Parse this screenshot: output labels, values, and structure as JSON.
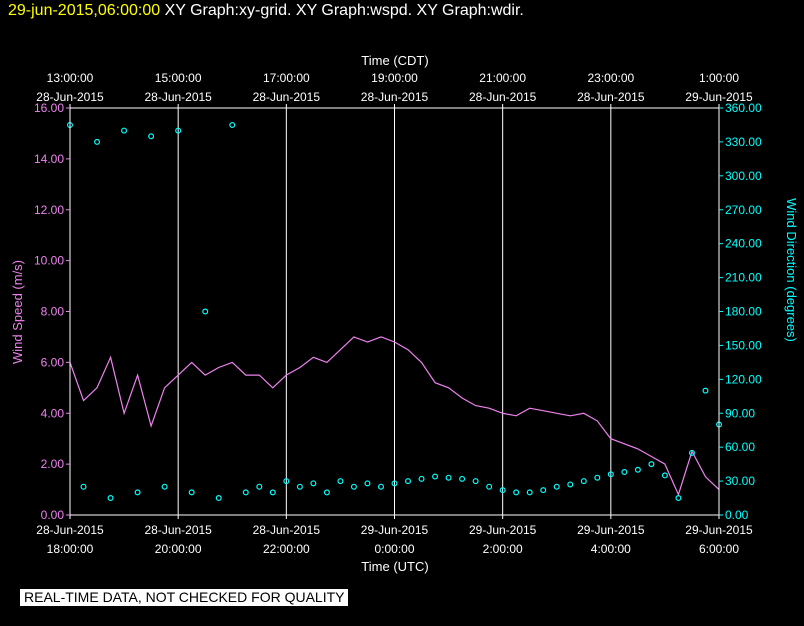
{
  "header": {
    "timestamp": "29-jun-2015,06:00:00",
    "graph_titles": "XY Graph:xy-grid.  XY Graph:wspd.  XY Graph:wdir."
  },
  "notice": "REAL-TIME DATA, NOT CHECKED FOR QUALITY",
  "colors": {
    "background": "#000000",
    "axes": "#ffffff",
    "wind_speed": "#ee82ee",
    "wind_direction": "#00ffff",
    "timestamp": "#ffff00"
  },
  "chart_data": {
    "type": "line",
    "top_axis": {
      "label": "Time (CDT)",
      "ticks": [
        {
          "hour": 0,
          "line1": "13:00:00",
          "line2": "28-Jun-2015"
        },
        {
          "hour": 2,
          "line1": "15:00:00",
          "line2": "28-Jun-2015"
        },
        {
          "hour": 4,
          "line1": "17:00:00",
          "line2": "28-Jun-2015"
        },
        {
          "hour": 6,
          "line1": "19:00:00",
          "line2": "28-Jun-2015"
        },
        {
          "hour": 8,
          "line1": "21:00:00",
          "line2": "28-Jun-2015"
        },
        {
          "hour": 10,
          "line1": "23:00:00",
          "line2": "28-Jun-2015"
        },
        {
          "hour": 12,
          "line1": "1:00:00",
          "line2": "29-Jun-2015"
        }
      ]
    },
    "bottom_axis": {
      "label": "Time (UTC)",
      "ticks": [
        {
          "hour": 0,
          "line1": "28-Jun-2015",
          "line2": "18:00:00"
        },
        {
          "hour": 2,
          "line1": "28-Jun-2015",
          "line2": "20:00:00"
        },
        {
          "hour": 4,
          "line1": "28-Jun-2015",
          "line2": "22:00:00"
        },
        {
          "hour": 6,
          "line1": "29-Jun-2015",
          "line2": "0:00:00"
        },
        {
          "hour": 8,
          "line1": "29-Jun-2015",
          "line2": "2:00:00"
        },
        {
          "hour": 10,
          "line1": "29-Jun-2015",
          "line2": "4:00:00"
        },
        {
          "hour": 12,
          "line1": "29-Jun-2015",
          "line2": "6:00:00"
        }
      ]
    },
    "left_axis": {
      "label": "Wind Speed (m/s)",
      "ylim": [
        0,
        16
      ],
      "ticks": [
        "0.00",
        "2.00",
        "4.00",
        "6.00",
        "8.00",
        "10.00",
        "12.00",
        "14.00",
        "16.00"
      ]
    },
    "right_axis": {
      "label": "Wind Direction (degrees)",
      "ylim": [
        0,
        360
      ],
      "ticks": [
        "0.00",
        "30.00",
        "60.00",
        "90.00",
        "120.00",
        "150.00",
        "180.00",
        "210.00",
        "240.00",
        "270.00",
        "300.00",
        "330.00",
        "360.00"
      ]
    },
    "xlim_hours": [
      0,
      12
    ],
    "grid": "vertical",
    "series": [
      {
        "name": "Wind Speed",
        "style": "line",
        "x": [
          0,
          0.25,
          0.5,
          0.75,
          1,
          1.25,
          1.5,
          1.75,
          2,
          2.25,
          2.5,
          2.75,
          3,
          3.25,
          3.5,
          3.75,
          4,
          4.25,
          4.5,
          4.75,
          5,
          5.25,
          5.5,
          5.75,
          6,
          6.25,
          6.5,
          6.75,
          7,
          7.25,
          7.5,
          7.75,
          8,
          8.25,
          8.5,
          8.75,
          9,
          9.25,
          9.5,
          9.75,
          10,
          10.25,
          10.5,
          10.75,
          11,
          11.25,
          11.5,
          11.75,
          12
        ],
        "y": [
          6.0,
          4.5,
          5.0,
          6.2,
          4.0,
          5.5,
          3.5,
          5.0,
          5.5,
          6.0,
          5.5,
          5.8,
          6.0,
          5.5,
          5.5,
          5.0,
          5.5,
          5.8,
          6.2,
          6.0,
          6.5,
          7.0,
          6.8,
          7.0,
          6.8,
          6.5,
          6.0,
          5.2,
          5.0,
          4.6,
          4.3,
          4.2,
          4.0,
          3.9,
          4.2,
          4.1,
          4.0,
          3.9,
          4.0,
          3.7,
          3.0,
          2.8,
          2.6,
          2.3,
          2.0,
          0.8,
          2.5,
          1.5,
          1.0
        ]
      },
      {
        "name": "Wind Direction",
        "style": "scatter",
        "x": [
          0,
          0.25,
          0.5,
          0.75,
          1,
          1.25,
          1.5,
          1.75,
          2,
          2.25,
          2.5,
          2.75,
          3,
          3.25,
          3.5,
          3.75,
          4,
          4.25,
          4.5,
          4.75,
          5,
          5.25,
          5.5,
          5.75,
          6,
          6.25,
          6.5,
          6.75,
          7,
          7.25,
          7.5,
          7.75,
          8,
          8.25,
          8.5,
          8.75,
          9,
          9.25,
          9.5,
          9.75,
          10,
          10.25,
          10.5,
          10.75,
          11,
          11.25,
          11.5,
          11.75,
          12
        ],
        "y": [
          345,
          25,
          330,
          15,
          340,
          20,
          335,
          25,
          340,
          20,
          180,
          15,
          345,
          20,
          25,
          20,
          30,
          25,
          28,
          20,
          30,
          25,
          28,
          25,
          28,
          30,
          32,
          34,
          33,
          32,
          30,
          25,
          22,
          20,
          20,
          22,
          25,
          27,
          30,
          33,
          36,
          38,
          40,
          45,
          35,
          15,
          55,
          110,
          80
        ]
      }
    ]
  }
}
